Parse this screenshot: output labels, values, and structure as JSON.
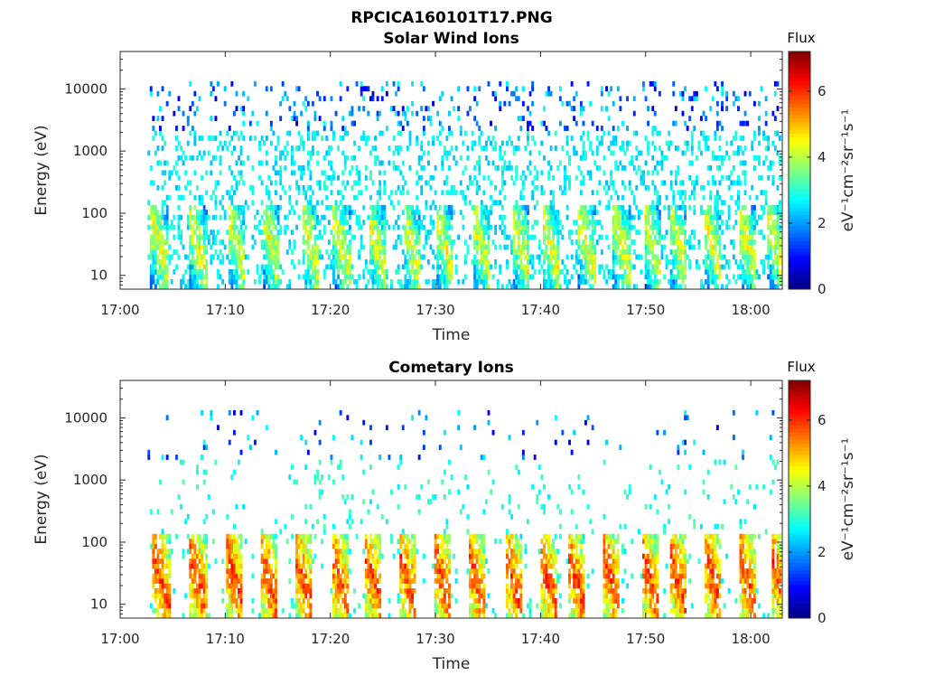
{
  "figure": {
    "title": "RPCICA160101T17.PNG"
  },
  "chart_data": [
    {
      "type": "heatmap",
      "title": "Solar Wind Ions",
      "xlabel": "Time",
      "ylabel": "Energy (eV)",
      "x_ticks": [
        "17:00",
        "17:10",
        "17:20",
        "17:30",
        "17:40",
        "17:50",
        "18:00"
      ],
      "x_range": [
        "17:00",
        "18:03"
      ],
      "y_scale": "log",
      "y_ticks": [
        10,
        100,
        1000,
        10000
      ],
      "y_tick_labels": [
        "10",
        "100",
        "1000",
        "10000"
      ],
      "y_range": [
        6,
        40000
      ],
      "colorbar": {
        "title": "Flux",
        "label": "eV⁻¹cm⁻²sr⁻¹s⁻¹",
        "ticks": [
          0,
          2,
          4,
          6
        ],
        "range": [
          0,
          7.2
        ]
      },
      "sweep_start_minutes": [
        2.8,
        6.5,
        10.2,
        13.5,
        17.2,
        20.2,
        23.5,
        26.8,
        30.0,
        33.5,
        37.2,
        40.0,
        43.5,
        46.8,
        49.8,
        52.2,
        55.5,
        58.8,
        61.5
      ],
      "peak_flux": 5.0,
      "peak_energy_ev": [
        10,
        80
      ],
      "background_flux": 2.5
    },
    {
      "type": "heatmap",
      "title": "Cometary Ions",
      "xlabel": "Time",
      "ylabel": "Energy (eV)",
      "x_ticks": [
        "17:00",
        "17:10",
        "17:20",
        "17:30",
        "17:40",
        "17:50",
        "18:00"
      ],
      "x_range": [
        "17:00",
        "18:03"
      ],
      "y_scale": "log",
      "y_ticks": [
        10,
        100,
        1000,
        10000
      ],
      "y_tick_labels": [
        "10",
        "100",
        "1000",
        "10000"
      ],
      "y_range": [
        6,
        40000
      ],
      "colorbar": {
        "title": "Flux",
        "label": "eV⁻¹cm⁻²sr⁻¹s⁻¹",
        "ticks": [
          0,
          2,
          4,
          6
        ],
        "range": [
          0,
          7.2
        ]
      },
      "sweep_start_minutes": [
        3.0,
        6.5,
        10.0,
        13.2,
        16.5,
        20.0,
        23.2,
        26.5,
        29.8,
        33.0,
        36.5,
        39.8,
        42.5,
        45.8,
        49.5,
        52.2,
        55.5,
        58.8,
        61.8
      ],
      "peak_flux": 6.5,
      "peak_energy_ev": [
        8,
        60
      ],
      "background_flux": 2.8
    }
  ]
}
